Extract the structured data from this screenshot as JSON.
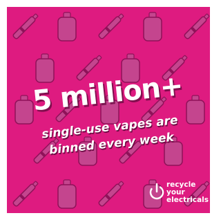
{
  "headline": "5 million+",
  "subtext": [
    "single-use vapes are",
    "binned every week"
  ],
  "logo": {
    "lines": [
      "recycle",
      "your",
      "electricals"
    ]
  }
}
